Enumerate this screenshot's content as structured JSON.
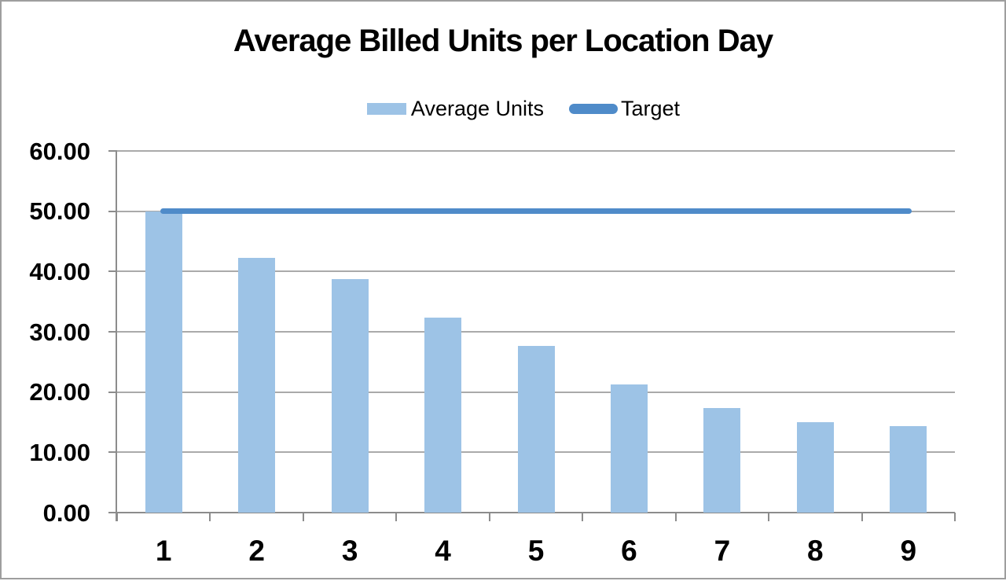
{
  "chart_data": {
    "type": "bar",
    "title": "Average Billed Units per Location Day",
    "categories": [
      "1",
      "2",
      "3",
      "4",
      "5",
      "6",
      "7",
      "8",
      "9"
    ],
    "series": [
      {
        "name": "Average Units",
        "type": "bar",
        "color": "#9DC3E6",
        "values": [
          49.9,
          42.3,
          38.7,
          32.4,
          27.7,
          21.3,
          17.3,
          15.0,
          14.4
        ]
      },
      {
        "name": "Target",
        "type": "line",
        "color": "#4F8BC9",
        "values": [
          50,
          50,
          50,
          50,
          50,
          50,
          50,
          50,
          50
        ]
      }
    ],
    "xlabel": "",
    "ylabel": "",
    "ylim": [
      0,
      60
    ],
    "ytick_step": 10,
    "ytick_labels": [
      "0.00",
      "10.00",
      "20.00",
      "30.00",
      "40.00",
      "50.00",
      "60.00"
    ],
    "grid": true,
    "legend_position": "top"
  }
}
